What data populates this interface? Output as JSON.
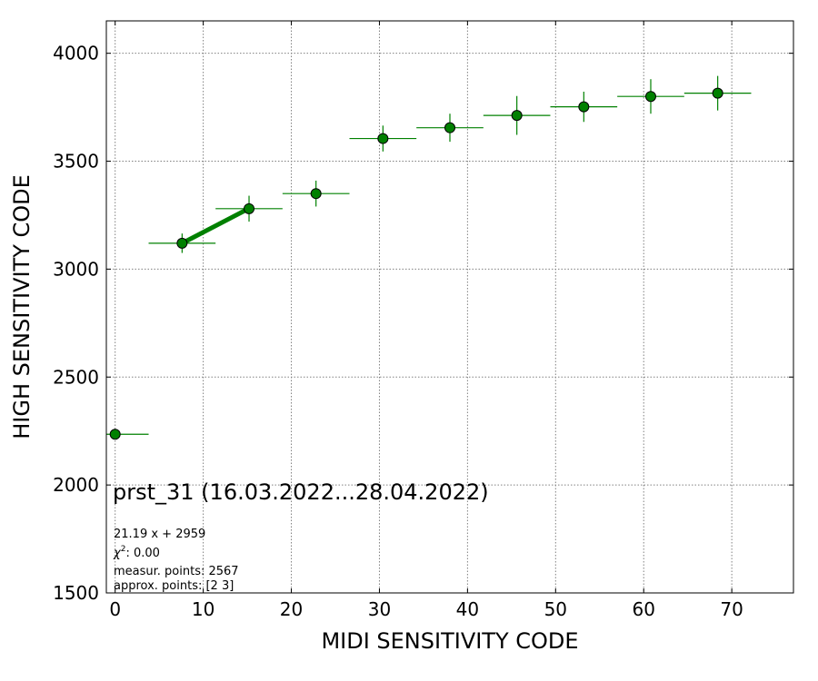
{
  "chart_data": {
    "type": "scatter",
    "xlabel": "MIDI SENSITIVITY CODE",
    "ylabel": "HIGH SENSITIVITY CODE",
    "xlim": [
      -1,
      77
    ],
    "ylim": [
      1500,
      4150
    ],
    "x_ticks": [
      0,
      10,
      20,
      30,
      40,
      50,
      60,
      70
    ],
    "y_ticks": [
      1500,
      2000,
      2500,
      3000,
      3500,
      4000
    ],
    "grid": true,
    "points": [
      {
        "x": 0,
        "y": 2235,
        "xerr": 3.8,
        "yerr": 0
      },
      {
        "x": 7.6,
        "y": 3120,
        "xerr": 3.8,
        "yerr": 45
      },
      {
        "x": 15.2,
        "y": 3280,
        "xerr": 3.8,
        "yerr": 60
      },
      {
        "x": 22.8,
        "y": 3350,
        "xerr": 3.8,
        "yerr": 60
      },
      {
        "x": 30.4,
        "y": 3605,
        "xerr": 3.8,
        "yerr": 60
      },
      {
        "x": 38.0,
        "y": 3655,
        "xerr": 3.8,
        "yerr": 65
      },
      {
        "x": 45.6,
        "y": 3712,
        "xerr": 3.8,
        "yerr": 90
      },
      {
        "x": 53.2,
        "y": 3752,
        "xerr": 3.8,
        "yerr": 70
      },
      {
        "x": 60.8,
        "y": 3800,
        "xerr": 3.8,
        "yerr": 80
      },
      {
        "x": 68.4,
        "y": 3815,
        "xerr": 3.8,
        "yerr": 80
      }
    ],
    "fit_line": {
      "x": [
        7.6,
        15.2
      ],
      "slope": 21.19,
      "intercept": 2959
    },
    "colors": {
      "marker": "#008000",
      "errorbar": "#008000",
      "fit": "#008000",
      "marker_edge": "#000000"
    }
  },
  "annotations": {
    "title": "prst_31 (16.03.2022...28.04.2022)",
    "fit_equation": "21.19 x + 2959",
    "chi2_value": ": 0.00",
    "measur_points": "measur. points: 2567",
    "approx_points": "approx. points: [2 3]"
  }
}
